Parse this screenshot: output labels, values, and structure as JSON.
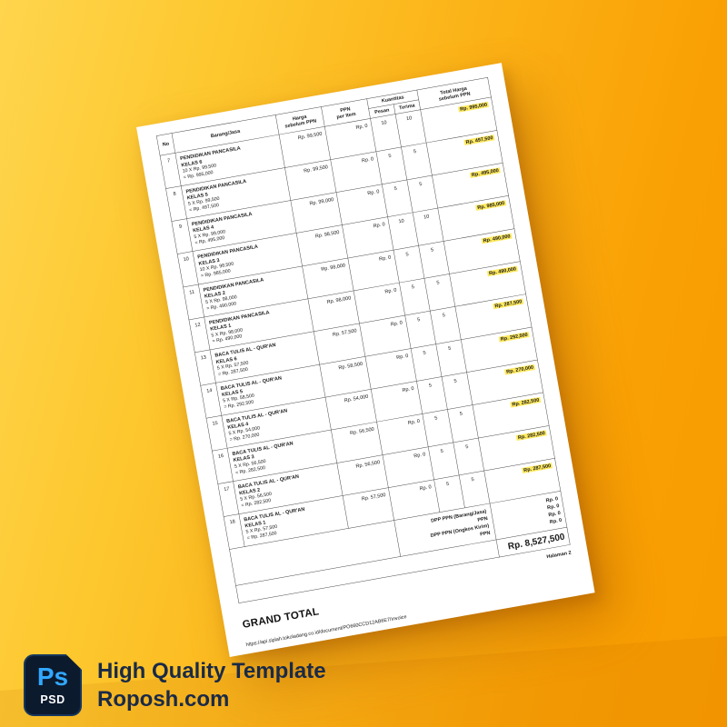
{
  "colors": {
    "background_light": "#ffd54d",
    "background_dark": "#f89c00",
    "highlight": "#ffe95f",
    "ps_blue": "#31a8ff",
    "badge_navy": "#0c1a2e",
    "brand_navy": "#1a2a47"
  },
  "branding": {
    "ps_label": "Ps",
    "psd_label": "PSD",
    "title": "High Quality Template",
    "site": "Roposh.com"
  },
  "document": {
    "header": {
      "no": "No",
      "item": "Barang/Jasa",
      "price": "Harga\nsebelum PPN",
      "ppn": "PPN\nper Item",
      "qty": "Kuantitas",
      "ordered": "Pesan",
      "received": "Terima",
      "total": "Total Harga\nsebelum PPN"
    },
    "rows": [
      {
        "no": "7",
        "name": "PENDIDIKAN PANCASILA",
        "class": "KELAS 6",
        "calc": "10 X Rp. 99,500",
        "subtotal": "= Rp. 995,000",
        "price": "Rp. 99,500",
        "ppn": "Rp. 0",
        "ordered": "10",
        "received": "10",
        "total": "Rp. 995,000"
      },
      {
        "no": "8",
        "name": "PENDIDIKAN PANCASILA",
        "class": "KELAS 5",
        "calc": "5 X Rp. 99,500",
        "subtotal": "= Rp. 497,500",
        "price": "Rp. 99,500",
        "ppn": "Rp. 0",
        "ordered": "5",
        "received": "5",
        "total": "Rp. 497,500"
      },
      {
        "no": "9",
        "name": "PENDIDIKAN PANCASILA",
        "class": "KELAS 4",
        "calc": "5 X Rp. 99,000",
        "subtotal": "= Rp. 495,000",
        "price": "Rp. 99,000",
        "ppn": "Rp. 0",
        "ordered": "5",
        "received": "5",
        "total": "Rp. 495,000"
      },
      {
        "no": "10",
        "name": "PENDIDIKAN PANCASILA",
        "class": "KELAS 3",
        "calc": "10 X Rp. 98,500",
        "subtotal": "= Rp. 985,000",
        "price": "Rp. 98,500",
        "ppn": "Rp. 0",
        "ordered": "10",
        "received": "10",
        "total": "Rp. 985,000"
      },
      {
        "no": "11",
        "name": "PENDIDIKAN PANCASILA",
        "class": "KELAS 2",
        "calc": "5 X Rp. 98,000",
        "subtotal": "= Rp. 490,000",
        "price": "Rp. 98,000",
        "ppn": "Rp. 0",
        "ordered": "5",
        "received": "5",
        "total": "Rp. 490,000"
      },
      {
        "no": "12",
        "name": "PENDIDIKAN PANCASILA",
        "class": "KELAS 1",
        "calc": "5 X Rp. 98,000",
        "subtotal": "= Rp. 490,000",
        "price": "Rp. 98,000",
        "ppn": "Rp. 0",
        "ordered": "5",
        "received": "5",
        "total": "Rp. 490,000"
      },
      {
        "no": "13",
        "name": "BACA TULIS AL - QUR'AN",
        "class": "KELAS 6",
        "calc": "5 X Rp. 57,500",
        "subtotal": "= Rp. 287,500",
        "price": "Rp. 57,500",
        "ppn": "Rp. 0",
        "ordered": "5",
        "received": "5",
        "total": "Rp. 287,500"
      },
      {
        "no": "14",
        "name": "BACA TULIS AL - QUR'AN",
        "class": "KELAS 5",
        "calc": "5 X Rp. 58,500",
        "subtotal": "= Rp. 292,500",
        "price": "Rp. 58,500",
        "ppn": "Rp. 0",
        "ordered": "5",
        "received": "5",
        "total": "Rp. 292,500"
      },
      {
        "no": "15",
        "name": "BACA TULIS AL - QUR'AN",
        "class": "KELAS 4",
        "calc": "5 X Rp. 54,000",
        "subtotal": "= Rp. 270,000",
        "price": "Rp. 54,000",
        "ppn": "Rp. 0",
        "ordered": "5",
        "received": "5",
        "total": "Rp. 270,000"
      },
      {
        "no": "16",
        "name": "BACA TULIS AL - QUR'AN",
        "class": "KELAS 3",
        "calc": "5 X Rp. 56,500",
        "subtotal": "= Rp. 282,500",
        "price": "Rp. 56,500",
        "ppn": "Rp. 0",
        "ordered": "5",
        "received": "5",
        "total": "Rp. 282,500"
      },
      {
        "no": "17",
        "name": "BACA TULIS AL - QUR'AN",
        "class": "KELAS 2",
        "calc": "5 X Rp. 56,500",
        "subtotal": "= Rp. 282,500",
        "price": "Rp. 56,500",
        "ppn": "Rp. 0",
        "ordered": "5",
        "received": "5",
        "total": "Rp. 282,500"
      },
      {
        "no": "18",
        "name": "BACA TULIS AL - QUR'AN",
        "class": "KELAS 1",
        "calc": "5 X Rp. 57,500",
        "subtotal": "= Rp. 287,500",
        "price": "Rp. 57,500",
        "ppn": "Rp. 0",
        "ordered": "5",
        "received": "5",
        "total": "Rp. 287,500"
      }
    ],
    "summary_labels": [
      "DPP PPN (Barang/Jasa)",
      "PPN",
      "DPP PPN (Ongkos Kirim)",
      "PPN"
    ],
    "summary_values": [
      "Rp. 0",
      "Rp. 0",
      "Rp. 0",
      "Rp. 0"
    ],
    "grand_total_label": "GRAND TOTAL",
    "grand_total_value": "Rp. 8,527,500",
    "page_number": "Halaman 2",
    "source_url": "https://api.siplah.tokoladang.co.id/document/PO660CCD12AB6E7/invoice"
  }
}
